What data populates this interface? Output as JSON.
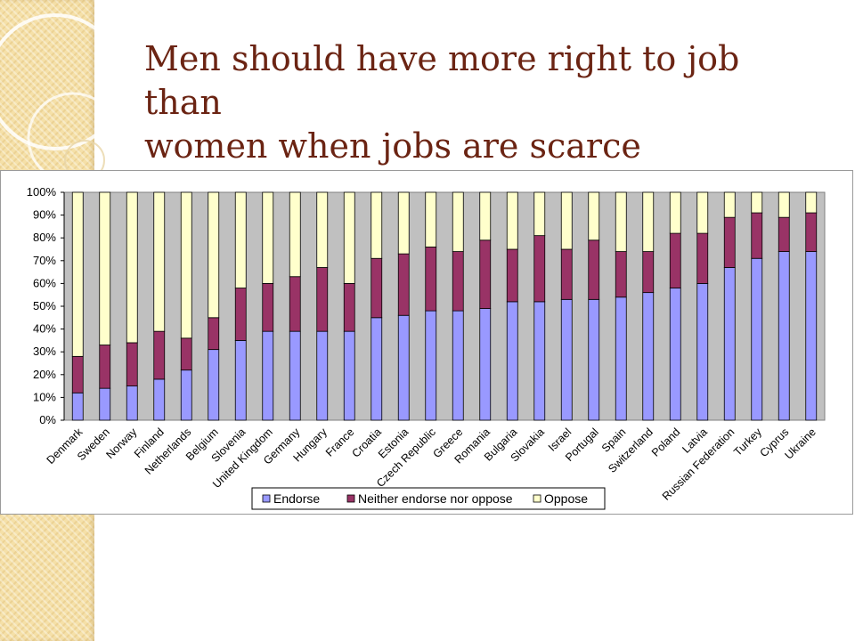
{
  "slide": {
    "title_line1": "Men should have more right to job than",
    "title_line2": "women when jobs are scarce"
  },
  "colors": {
    "endorse": "#9999ff",
    "neither": "#993366",
    "oppose": "#ffffcc",
    "plot_bg": "#c0c0c0",
    "title": "#6b2413"
  },
  "chart_data": {
    "type": "bar",
    "stacked": true,
    "categories": [
      "Denmark",
      "Sweden",
      "Norway",
      "Finland",
      "Netherlands",
      "Belgium",
      "Slovenia",
      "United Kingdom",
      "Germany",
      "Hungary",
      "France",
      "Croatia",
      "Estonia",
      "Czech Republic",
      "Greece",
      "Romania",
      "Bulgaria",
      "Slovakia",
      "Israel",
      "Portugal",
      "Spain",
      "Switzerland",
      "Poland",
      "Latvia",
      "Russian Federation",
      "Turkey",
      "Cyprus",
      "Ukraine"
    ],
    "series": [
      {
        "name": "Endorse",
        "values": [
          12,
          14,
          15,
          18,
          22,
          31,
          35,
          39,
          39,
          39,
          39,
          45,
          46,
          48,
          48,
          49,
          52,
          52,
          53,
          53,
          54,
          56,
          58,
          60,
          67,
          71,
          74,
          74
        ]
      },
      {
        "name": "Neither endorse nor oppose",
        "values": [
          16,
          19,
          19,
          21,
          14,
          14,
          23,
          21,
          24,
          28,
          21,
          26,
          27,
          28,
          26,
          30,
          23,
          29,
          22,
          26,
          20,
          18,
          24,
          22,
          22,
          20,
          15,
          17
        ]
      },
      {
        "name": "Oppose",
        "values": [
          72,
          67,
          66,
          61,
          64,
          55,
          42,
          40,
          37,
          33,
          40,
          29,
          27,
          24,
          26,
          21,
          25,
          19,
          25,
          21,
          26,
          26,
          18,
          18,
          11,
          9,
          11,
          9
        ]
      }
    ],
    "yticks": [
      "0%",
      "10%",
      "20%",
      "30%",
      "40%",
      "50%",
      "60%",
      "70%",
      "80%",
      "90%",
      "100%"
    ],
    "ylim": [
      0,
      100
    ],
    "grid": false,
    "legend_position": "bottom"
  }
}
